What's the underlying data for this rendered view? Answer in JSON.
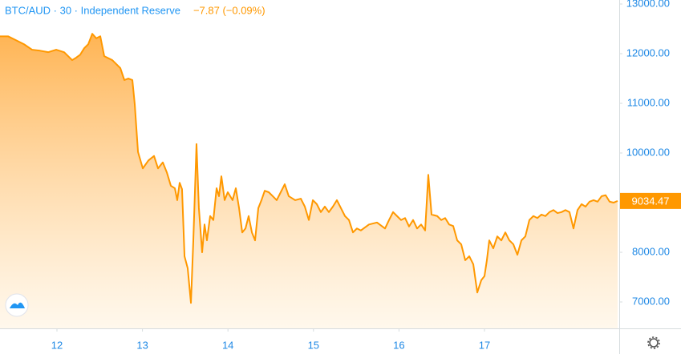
{
  "chart_data": {
    "type": "area",
    "title": "BTC/AUD · 30 · Independent Reserve",
    "change": "−7.87 (−0.09%)",
    "color": "#ff9800",
    "xlim": [
      11.334,
      18.576
    ],
    "xticks": [
      12,
      13,
      14,
      15,
      16,
      17
    ],
    "ylim": [
      6468,
      13081
    ],
    "yticks": [
      {
        "value": 7000,
        "label": "7000.00"
      },
      {
        "value": 8000,
        "label": "8000.00"
      },
      {
        "value": 9000,
        "label": "9000.00"
      },
      {
        "value": 10000,
        "label": "10000.00"
      },
      {
        "value": 11000,
        "label": "11000.00"
      },
      {
        "value": 12000,
        "label": "12000.00"
      },
      {
        "value": 13000,
        "label": "13000.00"
      }
    ],
    "grid": false,
    "x": [
      11.334,
      11.428,
      11.522,
      11.615,
      11.709,
      11.803,
      11.897,
      11.991,
      12.084,
      12.178,
      12.225,
      12.272,
      12.319,
      12.366,
      12.413,
      12.46,
      12.507,
      12.553,
      12.647,
      12.741,
      12.788,
      12.835,
      12.882,
      12.91,
      12.948,
      13.004,
      13.07,
      13.135,
      13.182,
      13.238,
      13.285,
      13.332,
      13.379,
      13.407,
      13.435,
      13.463,
      13.492,
      13.529,
      13.567,
      13.595,
      13.632,
      13.66,
      13.698,
      13.726,
      13.754,
      13.792,
      13.829,
      13.867,
      13.895,
      13.923,
      13.961,
      13.998,
      14.054,
      14.092,
      14.13,
      14.167,
      14.205,
      14.242,
      14.28,
      14.317,
      14.355,
      14.392,
      14.43,
      14.477,
      14.524,
      14.57,
      14.617,
      14.664,
      14.711,
      14.786,
      14.852,
      14.899,
      14.946,
      14.993,
      15.039,
      15.086,
      15.133,
      15.18,
      15.227,
      15.274,
      15.321,
      15.368,
      15.415,
      15.462,
      15.508,
      15.555,
      15.649,
      15.743,
      15.837,
      15.884,
      15.931,
      15.977,
      16.024,
      16.071,
      16.118,
      16.165,
      16.212,
      16.259,
      16.306,
      16.343,
      16.381,
      16.447,
      16.494,
      16.54,
      16.587,
      16.634,
      16.681,
      16.728,
      16.775,
      16.822,
      16.869,
      16.916,
      16.963,
      17.0,
      17.028,
      17.056,
      17.103,
      17.15,
      17.197,
      17.244,
      17.291,
      17.338,
      17.385,
      17.432,
      17.478,
      17.525,
      17.572,
      17.619,
      17.666,
      17.713,
      17.76,
      17.807,
      17.854,
      17.901,
      17.947,
      17.994,
      18.041,
      18.088,
      18.135,
      18.182,
      18.229,
      18.276,
      18.323,
      18.37,
      18.417,
      18.463,
      18.51,
      18.557
    ],
    "values": [
      12350,
      12350,
      12270,
      12190,
      12080,
      12060,
      12030,
      12080,
      12030,
      11870,
      11920,
      11980,
      12110,
      12190,
      12400,
      12310,
      12350,
      11950,
      11870,
      11710,
      11470,
      11500,
      11470,
      10980,
      10020,
      9690,
      9850,
      9940,
      9690,
      9810,
      9610,
      9340,
      9290,
      9050,
      9400,
      9270,
      7920,
      7680,
      6980,
      8240,
      10180,
      8890,
      8000,
      8560,
      8240,
      8730,
      8650,
      9290,
      9130,
      9530,
      9050,
      9210,
      9050,
      9290,
      8890,
      8400,
      8480,
      8730,
      8400,
      8240,
      8890,
      9050,
      9240,
      9210,
      9130,
      9050,
      9210,
      9370,
      9130,
      9050,
      9080,
      8920,
      8650,
      9050,
      8970,
      8810,
      8920,
      8810,
      8920,
      9050,
      8890,
      8730,
      8650,
      8400,
      8480,
      8440,
      8560,
      8600,
      8480,
      8650,
      8810,
      8730,
      8650,
      8690,
      8520,
      8650,
      8480,
      8560,
      8440,
      9560,
      8760,
      8730,
      8650,
      8690,
      8560,
      8530,
      8240,
      8160,
      7840,
      7920,
      7760,
      7190,
      7440,
      7520,
      7840,
      8240,
      8080,
      8320,
      8240,
      8400,
      8240,
      8160,
      7950,
      8240,
      8320,
      8650,
      8730,
      8690,
      8760,
      8730,
      8810,
      8850,
      8790,
      8810,
      8850,
      8810,
      8480,
      8850,
      8970,
      8920,
      9020,
      9050,
      9020,
      9130,
      9150,
      9020,
      9000,
      9034.47
    ]
  }
}
